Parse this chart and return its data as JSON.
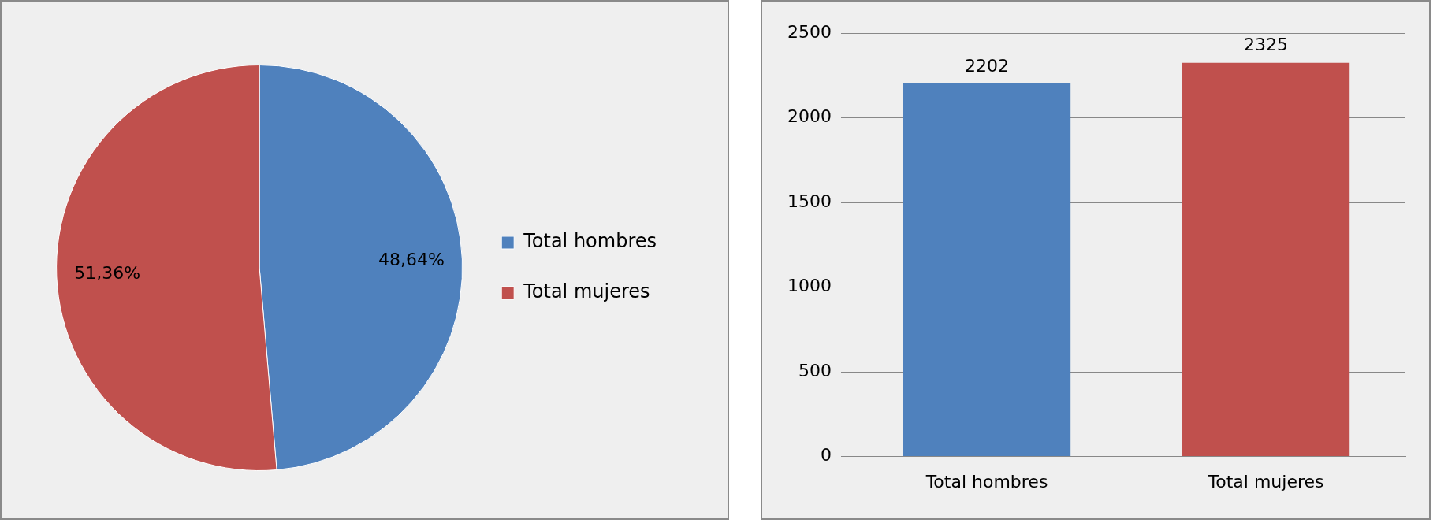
{
  "chart_data": [
    {
      "type": "pie",
      "categories": [
        "Total hombres",
        "Total mujeres"
      ],
      "values": [
        48.64,
        51.36
      ],
      "colors": [
        "#4f81bd",
        "#c0504d"
      ],
      "value_labels": [
        "48,64%",
        "51,36%"
      ],
      "legend": "right"
    },
    {
      "type": "bar",
      "categories": [
        "Total hombres",
        "Total mujeres"
      ],
      "values": [
        2202,
        2325
      ],
      "colors": [
        "#4f81bd",
        "#c0504d"
      ],
      "ylim": [
        0,
        2500
      ],
      "yticks": [
        0,
        500,
        1000,
        1500,
        2000,
        2500
      ],
      "grid": "y",
      "data_labels": true,
      "legend": false
    }
  ]
}
